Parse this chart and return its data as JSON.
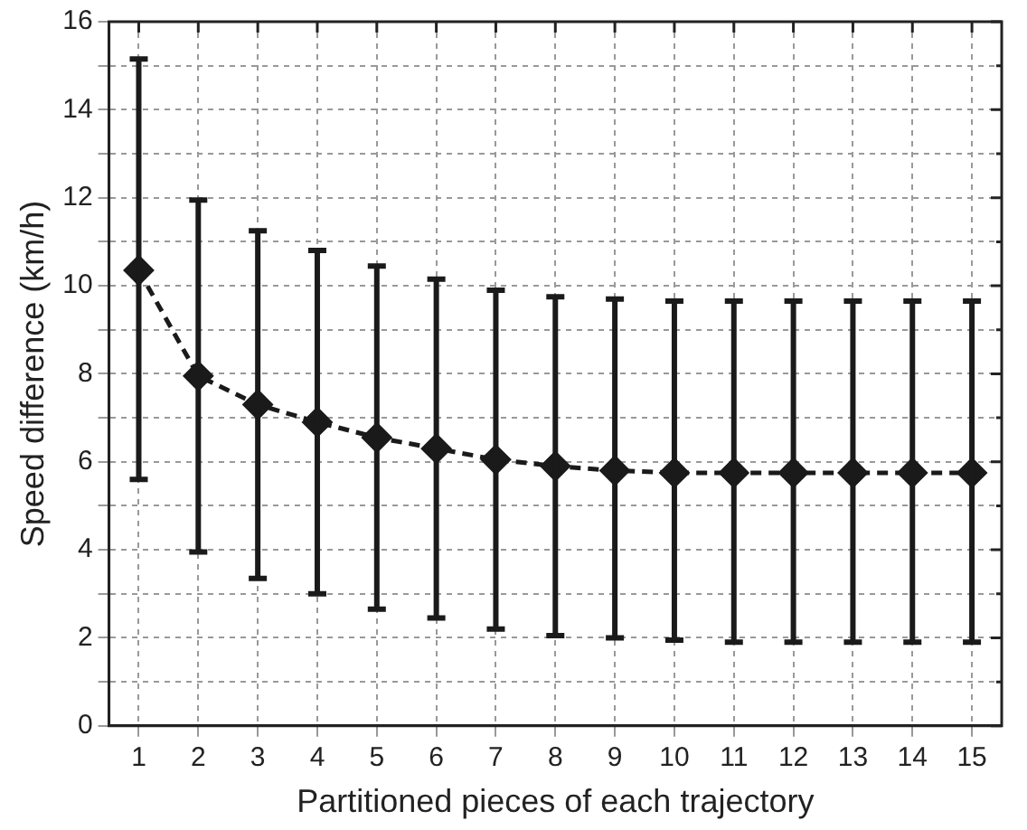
{
  "chart_data": {
    "type": "line",
    "xlabel": "Partitioned pieces of each trajectory",
    "ylabel": "Speed difference (km/h)",
    "x": [
      1,
      2,
      3,
      4,
      5,
      6,
      7,
      8,
      9,
      10,
      11,
      12,
      13,
      14,
      15
    ],
    "series": [
      {
        "color": "#1a1a1a",
        "values": [
          10.35,
          7.95,
          7.3,
          6.9,
          6.55,
          6.3,
          6.05,
          5.9,
          5.8,
          5.75,
          5.75,
          5.75,
          5.75,
          5.75,
          5.75
        ],
        "errors": [
          [
            5.6,
            15.15
          ],
          [
            3.95,
            11.95
          ],
          [
            3.35,
            11.25
          ],
          [
            3.0,
            10.8
          ],
          [
            2.65,
            10.45
          ],
          [
            2.45,
            10.15
          ],
          [
            2.2,
            9.9
          ],
          [
            2.05,
            9.75
          ],
          [
            2.0,
            9.7
          ],
          [
            1.95,
            9.65
          ],
          [
            1.9,
            9.65
          ],
          [
            1.9,
            9.65
          ],
          [
            1.9,
            9.65
          ],
          [
            1.9,
            9.65
          ],
          [
            1.9,
            9.65
          ]
        ]
      }
    ],
    "xlim": [
      0.5,
      15.5
    ],
    "xticks": [
      1,
      2,
      3,
      4,
      5,
      6,
      7,
      8,
      9,
      10,
      11,
      12,
      13,
      14,
      15
    ],
    "ylim": [
      0,
      16
    ],
    "yticks": [
      0,
      {
        "value": 1,
        "label": null
      },
      2,
      {
        "value": 3,
        "label": null
      },
      4,
      {
        "value": 5,
        "label": null
      },
      6,
      {
        "value": 7,
        "label": null
      },
      8,
      {
        "value": 9,
        "label": null
      },
      10,
      {
        "value": 11,
        "label": null
      },
      12,
      {
        "value": 13,
        "label": null
      },
      14,
      {
        "value": 15,
        "label": null
      },
      16
    ],
    "grid": true,
    "legend": false,
    "marker": "diamond",
    "line_style": "dashed"
  }
}
